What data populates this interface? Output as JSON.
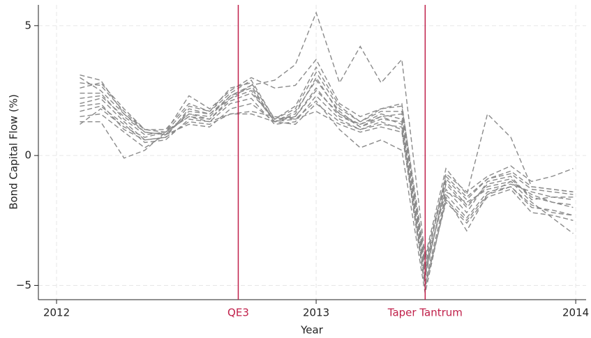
{
  "chart_data": {
    "type": "line",
    "x_label": "Year",
    "y_label": "Bond Capital Flow (%)",
    "x": [
      2012.09,
      2012.17,
      2012.26,
      2012.34,
      2012.42,
      2012.51,
      2012.59,
      2012.67,
      2012.75,
      2012.84,
      2012.92,
      2013.0,
      2013.09,
      2013.17,
      2013.25,
      2013.33,
      2013.42,
      2013.5,
      2013.58,
      2013.66,
      2013.75,
      2013.83,
      2013.91,
      2013.99
    ],
    "series": [
      {
        "color": "#8a8a8a",
        "values": [
          3.1,
          2.9,
          1.6,
          0.9,
          0.8,
          1.6,
          1.4,
          2.2,
          2.7,
          2.9,
          3.5,
          5.5,
          2.8,
          4.2,
          2.8,
          3.7,
          -3.9,
          -0.5,
          -1.5,
          1.6,
          0.7,
          -1.2,
          -1.3,
          -1.4
        ]
      },
      {
        "color": "#8a8a8a",
        "values": [
          2.8,
          2.7,
          1.7,
          1.0,
          0.9,
          2.3,
          1.8,
          2.5,
          3.0,
          2.6,
          2.7,
          3.7,
          2.0,
          1.5,
          1.8,
          2.0,
          -4.4,
          -0.7,
          -1.4,
          -0.8,
          -0.4,
          -1.0,
          -0.8,
          -0.5
        ]
      },
      {
        "color": "#8a8a8a",
        "values": [
          1.3,
          1.3,
          -0.1,
          0.2,
          0.9,
          1.5,
          1.3,
          1.6,
          1.7,
          1.5,
          1.4,
          2.1,
          1.0,
          0.3,
          0.6,
          0.2,
          -5.3,
          -1.6,
          -2.9,
          -1.5,
          -1.0,
          -1.8,
          -2.4,
          -3.0
        ]
      },
      {
        "color": "#8a8a8a",
        "values": [
          2.0,
          2.2,
          1.3,
          0.6,
          0.7,
          1.8,
          1.6,
          2.2,
          2.5,
          1.3,
          1.6,
          3.0,
          1.6,
          1.1,
          1.5,
          1.2,
          -4.7,
          -1.0,
          -1.9,
          -1.2,
          -1.0,
          -1.5,
          -1.8,
          -2.0
        ]
      },
      {
        "color": "#8a8a8a",
        "values": [
          2.4,
          2.4,
          1.4,
          0.8,
          0.9,
          1.6,
          1.5,
          2.3,
          2.6,
          1.3,
          1.5,
          2.6,
          1.5,
          1.2,
          1.6,
          1.4,
          -4.5,
          -1.3,
          -2.2,
          -1.0,
          -0.8,
          -1.7,
          -1.6,
          -1.7
        ]
      },
      {
        "color": "#8a8a8a",
        "values": [
          1.7,
          1.9,
          1.2,
          0.5,
          0.6,
          1.4,
          1.3,
          2.0,
          2.2,
          1.2,
          1.3,
          2.3,
          1.4,
          1.0,
          1.3,
          1.0,
          -4.9,
          -1.5,
          -2.4,
          -1.4,
          -1.2,
          -2.0,
          -2.1,
          -2.3
        ]
      },
      {
        "color": "#8a8a8a",
        "values": [
          2.6,
          2.8,
          1.8,
          1.0,
          1.0,
          2.0,
          1.7,
          2.4,
          2.9,
          1.4,
          1.8,
          3.2,
          1.8,
          1.3,
          1.7,
          1.7,
          -4.2,
          -0.9,
          -1.7,
          -0.9,
          -0.7,
          -1.3,
          -1.4,
          -1.5
        ]
      },
      {
        "color": "#8a8a8a",
        "values": [
          1.5,
          1.6,
          0.9,
          0.3,
          0.8,
          1.2,
          1.1,
          1.8,
          2.0,
          1.3,
          1.2,
          2.0,
          1.3,
          1.0,
          1.2,
          1.1,
          -5.0,
          -1.8,
          -2.6,
          -1.6,
          -1.3,
          -2.2,
          -2.3,
          -2.5
        ]
      },
      {
        "color": "#8a8a8a",
        "values": [
          2.2,
          2.3,
          1.5,
          0.9,
          0.8,
          1.7,
          1.6,
          2.3,
          2.7,
          1.3,
          1.7,
          2.9,
          1.7,
          1.1,
          1.4,
          1.3,
          -4.6,
          -1.1,
          -2.0,
          -1.1,
          -0.9,
          -1.6,
          -1.8,
          -1.9
        ]
      },
      {
        "color": "#8a8a8a",
        "values": [
          1.2,
          1.8,
          1.1,
          0.7,
          0.9,
          1.5,
          1.4,
          2.1,
          2.4,
          1.4,
          1.5,
          2.5,
          1.6,
          1.2,
          1.5,
          1.6,
          -4.3,
          -1.4,
          -1.8,
          -1.3,
          -1.1,
          -1.4,
          -1.6,
          -1.6
        ]
      },
      {
        "color": "#8a8a8a",
        "values": [
          3.0,
          2.5,
          1.6,
          1.0,
          0.9,
          1.9,
          1.7,
          2.6,
          2.8,
          1.4,
          1.9,
          3.4,
          1.9,
          1.3,
          1.8,
          1.9,
          -4.0,
          -0.8,
          -1.6,
          -0.9,
          -0.6,
          -1.2,
          -1.3,
          -1.4
        ]
      },
      {
        "color": "#8a8a8a",
        "values": [
          1.9,
          2.0,
          1.0,
          0.6,
          0.7,
          1.3,
          1.2,
          1.6,
          1.6,
          1.3,
          1.4,
          1.7,
          1.2,
          0.9,
          1.1,
          0.9,
          -5.1,
          -1.7,
          -2.5,
          -1.5,
          -1.2,
          -1.9,
          -2.2,
          -2.3
        ]
      }
    ],
    "xlim": [
      2011.93,
      2014.04
    ],
    "ylim": [
      -5.55,
      5.8
    ],
    "xticks": [
      2012,
      2013,
      2014
    ],
    "yticks": [
      {
        "value": -5,
        "label": "−5"
      },
      0,
      5
    ],
    "grid": true,
    "annotations": [
      {
        "label": "QE3",
        "x": 2012.7,
        "color": "#c0204a"
      },
      {
        "label": "Taper Tantrum",
        "x": 2013.42,
        "color": "#c0204a"
      }
    ]
  }
}
